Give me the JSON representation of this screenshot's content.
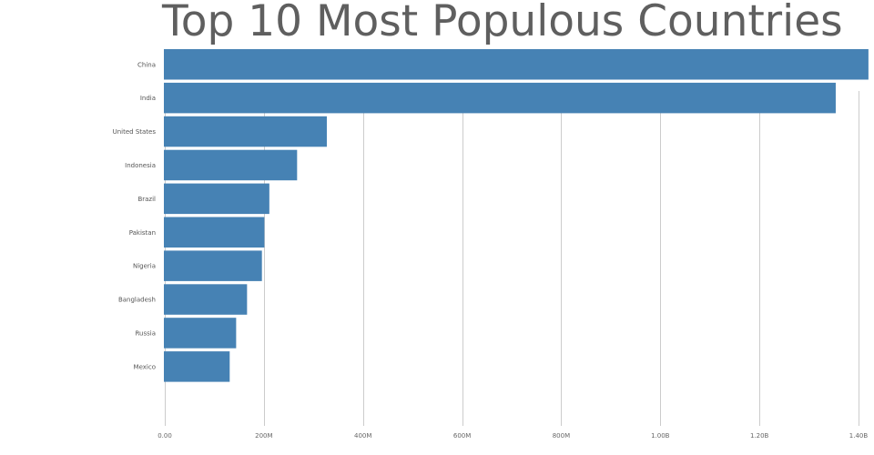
{
  "chart_data": {
    "type": "bar",
    "orientation": "horizontal",
    "title": "Top 10 Most Populous Countries",
    "xlabel": "",
    "ylabel": "",
    "categories": [
      "China",
      "India",
      "United States",
      "Indonesia",
      "Brazil",
      "Pakistan",
      "Nigeria",
      "Bangladesh",
      "Russia",
      "Mexico"
    ],
    "values": [
      1420000000,
      1354000000,
      327000000,
      267000000,
      211000000,
      201000000,
      196000000,
      166000000,
      144000000,
      131000000
    ],
    "xlim": [
      0,
      1400000000
    ],
    "x_ticks": [
      0,
      200000000,
      400000000,
      600000000,
      800000000,
      1000000000,
      1200000000,
      1400000000
    ],
    "x_tick_labels": [
      "0.00",
      "200M",
      "400M",
      "600M",
      "800M",
      "1.00B",
      "1.20B",
      "1.40B"
    ],
    "grid": "vertical",
    "bar_color": "#4682b4",
    "grid_color": "#cccccc"
  }
}
